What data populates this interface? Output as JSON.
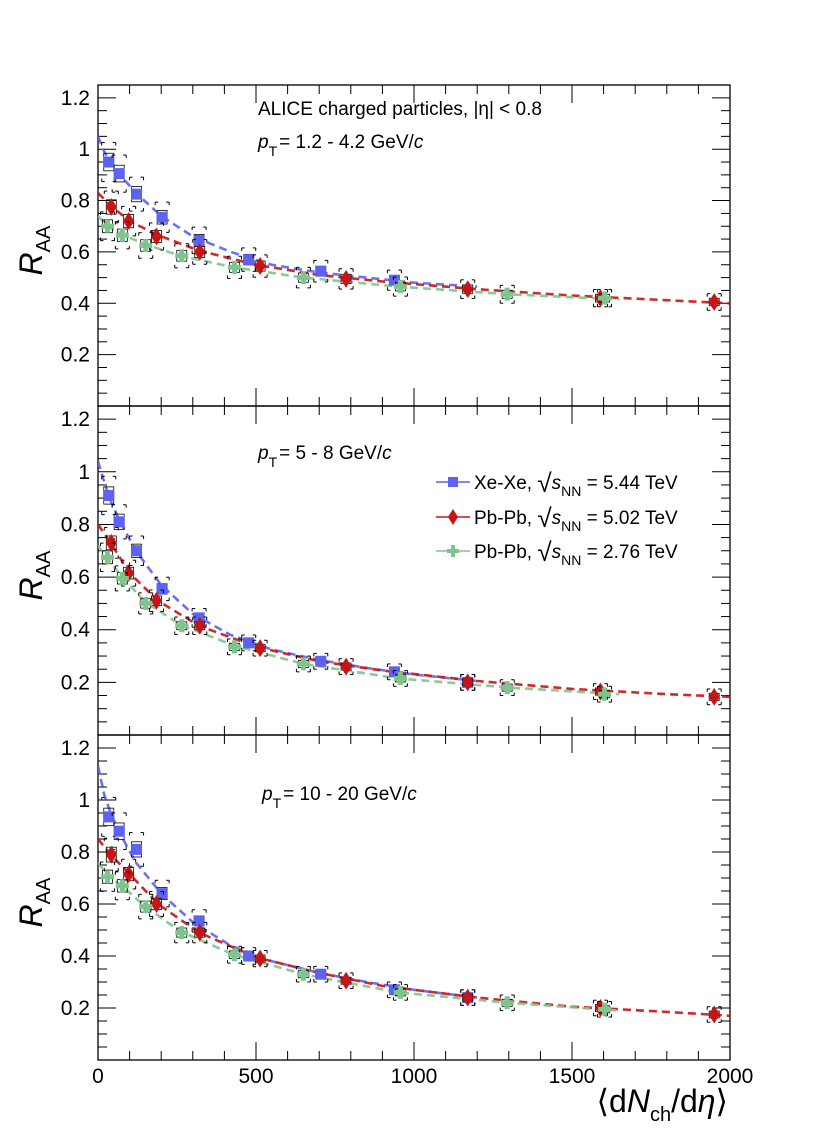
{
  "colors": {
    "xexe": "#5b63f0",
    "pbpb502": "#c81414",
    "pbpb276": "#7fc48c"
  },
  "chart_data": {
    "type": "scatter",
    "grid": false,
    "x_ticks": [
      "0",
      "500",
      "1000",
      "1500",
      "2000"
    ],
    "xlim": [
      0,
      2000
    ],
    "shared_ylim": [
      0,
      1.25
    ],
    "y_ticks": [
      "0.2",
      "0.4",
      "0.6",
      "0.8",
      "1",
      "1.2"
    ],
    "xlabel": "⟨dN_ch/dη⟩",
    "xlabel_parts": {
      "pre": "⟨d",
      "N": "N",
      "sub": "ch",
      "post": "/d",
      "eta": "η",
      "close": "⟩"
    },
    "ylabel_parts": {
      "R": "R",
      "sub": "AA"
    },
    "header": {
      "line1": "ALICE charged particles, |η| < 0.8"
    },
    "legend": {
      "placement": "middle-right of panel 2",
      "entries": [
        {
          "label_pre": "Xe-Xe, ",
          "s": "s",
          "sub": "NN",
          "label_post": " = 5.44 TeV",
          "series": "xexe"
        },
        {
          "label_pre": "Pb-Pb, ",
          "s": "s",
          "sub": "NN",
          "label_post": " = 5.02 TeV",
          "series": "pbpb502"
        },
        {
          "label_pre": "Pb-Pb, ",
          "s": "s",
          "sub": "NN",
          "label_post": " = 2.76 TeV",
          "series": "pbpb276"
        }
      ]
    },
    "panels": [
      {
        "pt_label": {
          "p": "p",
          "sub": "T",
          "text": "= 1.2 - 4.2 GeV/",
          "c": "c"
        },
        "series": [
          {
            "id": "xexe",
            "marker": "square",
            "x": [
              34,
              67,
              122,
              203,
              320,
              477,
              705,
              938
            ],
            "y": [
              0.95,
              0.905,
              0.825,
              0.735,
              0.645,
              0.57,
              0.525,
              0.49
            ],
            "fit": [
              [
                0,
                1.05
              ],
              [
                20,
                0.99
              ],
              [
                40,
                0.95
              ],
              [
                70,
                0.9
              ],
              [
                120,
                0.83
              ],
              [
                200,
                0.74
              ],
              [
                300,
                0.66
              ],
              [
                420,
                0.6
              ],
              [
                550,
                0.55
              ],
              [
                700,
                0.52
              ],
              [
                850,
                0.5
              ],
              [
                1000,
                0.48
              ],
              [
                1200,
                0.465
              ]
            ]
          },
          {
            "id": "pbpb502",
            "marker": "diamond",
            "x": [
              42,
              97,
              185,
              322,
              513,
              785,
              1170,
              1590,
              1950
            ],
            "y": [
              0.775,
              0.72,
              0.66,
              0.6,
              0.545,
              0.495,
              0.455,
              0.42,
              0.405
            ],
            "fit": [
              [
                0,
                0.83
              ],
              [
                40,
                0.78
              ],
              [
                100,
                0.72
              ],
              [
                190,
                0.665
              ],
              [
                320,
                0.605
              ],
              [
                500,
                0.55
              ],
              [
                700,
                0.51
              ],
              [
                900,
                0.485
              ],
              [
                1200,
                0.455
              ],
              [
                1500,
                0.43
              ],
              [
                1800,
                0.412
              ],
              [
                2000,
                0.4
              ]
            ]
          },
          {
            "id": "pbpb276",
            "marker": "cross",
            "x": [
              30,
              77,
              151,
              265,
              432,
              650,
              957,
              1295,
              1603
            ],
            "y": [
              0.7,
              0.665,
              0.625,
              0.585,
              0.54,
              0.5,
              0.465,
              0.435,
              0.42
            ],
            "fit": [
              [
                0,
                0.74
              ],
              [
                30,
                0.7
              ],
              [
                80,
                0.665
              ],
              [
                150,
                0.63
              ],
              [
                260,
                0.585
              ],
              [
                430,
                0.54
              ],
              [
                650,
                0.5
              ],
              [
                950,
                0.465
              ],
              [
                1300,
                0.435
              ],
              [
                1650,
                0.415
              ]
            ]
          }
        ]
      },
      {
        "pt_label": {
          "p": "p",
          "sub": "T",
          "text": "= 5 - 8 GeV/",
          "c": "c"
        },
        "series": [
          {
            "id": "xexe",
            "marker": "square",
            "x": [
              34,
              67,
              122,
              203,
              320,
              477,
              705,
              938,
              1170
            ],
            "y": [
              0.91,
              0.81,
              0.7,
              0.555,
              0.445,
              0.35,
              0.28,
              0.24,
              0.2
            ],
            "fit": [
              [
                0,
                1.04
              ],
              [
                20,
                0.96
              ],
              [
                40,
                0.89
              ],
              [
                70,
                0.81
              ],
              [
                120,
                0.7
              ],
              [
                200,
                0.57
              ],
              [
                300,
                0.46
              ],
              [
                420,
                0.38
              ],
              [
                550,
                0.325
              ],
              [
                700,
                0.285
              ],
              [
                850,
                0.255
              ],
              [
                1000,
                0.23
              ],
              [
                1200,
                0.205
              ]
            ]
          },
          {
            "id": "pbpb502",
            "marker": "diamond",
            "x": [
              42,
              97,
              185,
              322,
              513,
              785,
              1170,
              1590,
              1950
            ],
            "y": [
              0.73,
              0.615,
              0.51,
              0.415,
              0.33,
              0.26,
              0.2,
              0.165,
              0.145
            ],
            "fit": [
              [
                0,
                0.8
              ],
              [
                40,
                0.73
              ],
              [
                100,
                0.615
              ],
              [
                190,
                0.51
              ],
              [
                320,
                0.415
              ],
              [
                500,
                0.335
              ],
              [
                700,
                0.28
              ],
              [
                900,
                0.245
              ],
              [
                1200,
                0.205
              ],
              [
                1500,
                0.175
              ],
              [
                1800,
                0.155
              ],
              [
                2000,
                0.145
              ]
            ]
          },
          {
            "id": "pbpb276",
            "marker": "cross",
            "x": [
              30,
              77,
              151,
              265,
              432,
              650,
              957,
              1295,
              1603
            ],
            "y": [
              0.675,
              0.595,
              0.5,
              0.415,
              0.335,
              0.27,
              0.215,
              0.18,
              0.155
            ],
            "fit": [
              [
                0,
                0.72
              ],
              [
                30,
                0.67
              ],
              [
                80,
                0.595
              ],
              [
                150,
                0.505
              ],
              [
                260,
                0.42
              ],
              [
                430,
                0.34
              ],
              [
                650,
                0.27
              ],
              [
                950,
                0.215
              ],
              [
                1300,
                0.18
              ],
              [
                1650,
                0.155
              ]
            ]
          }
        ]
      },
      {
        "pt_label": {
          "p": "p",
          "sub": "T",
          "text": "= 10 - 20 GeV/",
          "c": "c"
        },
        "series": [
          {
            "id": "xexe",
            "marker": "square",
            "x": [
              34,
              67,
              122,
              203,
              320,
              477,
              705,
              938,
              1170
            ],
            "y": [
              0.935,
              0.88,
              0.81,
              0.64,
              0.535,
              0.4,
              0.33,
              0.27,
              0.24
            ],
            "fit": [
              [
                0,
                1.13
              ],
              [
                20,
                1.02
              ],
              [
                40,
                0.95
              ],
              [
                70,
                0.87
              ],
              [
                120,
                0.76
              ],
              [
                200,
                0.64
              ],
              [
                300,
                0.53
              ],
              [
                420,
                0.44
              ],
              [
                550,
                0.38
              ],
              [
                700,
                0.335
              ],
              [
                850,
                0.3
              ],
              [
                1000,
                0.27
              ],
              [
                1200,
                0.24
              ]
            ]
          },
          {
            "id": "pbpb502",
            "marker": "diamond",
            "x": [
              42,
              97,
              185,
              322,
              513,
              785,
              1170,
              1590,
              1950
            ],
            "y": [
              0.79,
              0.715,
              0.6,
              0.49,
              0.39,
              0.305,
              0.24,
              0.2,
              0.175
            ],
            "fit": [
              [
                0,
                0.85
              ],
              [
                40,
                0.79
              ],
              [
                100,
                0.715
              ],
              [
                190,
                0.6
              ],
              [
                320,
                0.49
              ],
              [
                500,
                0.395
              ],
              [
                700,
                0.335
              ],
              [
                900,
                0.285
              ],
              [
                1200,
                0.24
              ],
              [
                1500,
                0.205
              ],
              [
                1800,
                0.185
              ],
              [
                2000,
                0.17
              ]
            ]
          },
          {
            "id": "pbpb276",
            "marker": "cross",
            "x": [
              30,
              77,
              151,
              265,
              432,
              650,
              957,
              1295,
              1603
            ],
            "y": [
              0.705,
              0.67,
              0.59,
              0.49,
              0.405,
              0.33,
              0.26,
              0.22,
              0.195
            ],
            "fit": [
              [
                0,
                0.76
              ],
              [
                30,
                0.71
              ],
              [
                80,
                0.665
              ],
              [
                150,
                0.59
              ],
              [
                260,
                0.495
              ],
              [
                430,
                0.405
              ],
              [
                650,
                0.33
              ],
              [
                950,
                0.26
              ],
              [
                1300,
                0.22
              ],
              [
                1650,
                0.19
              ]
            ]
          }
        ]
      }
    ]
  }
}
